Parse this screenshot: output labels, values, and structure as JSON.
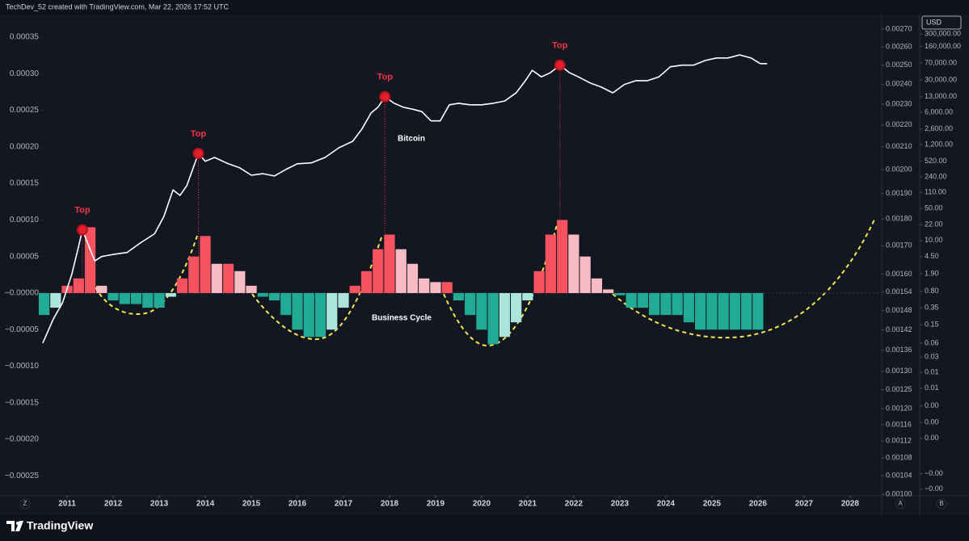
{
  "header": "TechDev_52 created with TradingView.com, Mar 22, 2026 17:52 UTC",
  "currency": "USD",
  "brand": "TradingView",
  "buttons": [
    "Z",
    "A",
    "B"
  ],
  "chart_data": {
    "type": "bar",
    "xlim": [
      2009.63,
      2028.67
    ],
    "xticks": [
      2011,
      2012,
      2013,
      2014,
      2015,
      2016,
      2017,
      2018,
      2019,
      2020,
      2021,
      2022,
      2023,
      2024,
      2025,
      2026,
      2027,
      2028
    ],
    "ylim": [
      -0.000275,
      0.000382
    ],
    "yticks": [
      {
        "value": 0.00035,
        "label": "0.00035"
      },
      {
        "value": 0.0003,
        "label": "0.00030"
      },
      {
        "value": 0.00025,
        "label": "0.00025"
      },
      {
        "value": 0.0002,
        "label": "0.00020"
      },
      {
        "value": 0.00015,
        "label": "0.00015"
      },
      {
        "value": 0.0001,
        "label": "0.00010"
      },
      {
        "value": 5e-05,
        "label": "0.00005"
      },
      {
        "value": 0,
        "label": "−0.00000"
      },
      {
        "value": -5e-05,
        "label": "−0.00005"
      },
      {
        "value": -0.0001,
        "label": "−0.00010"
      },
      {
        "value": -0.00015,
        "label": "−0.00015"
      },
      {
        "value": -0.0002,
        "label": "−0.00020"
      },
      {
        "value": -0.00025,
        "label": "−0.00025"
      }
    ],
    "y2lim": [
      3.2e-05,
      818000
    ],
    "y2scale": "log",
    "y2ticks": [
      {
        "value": 300000,
        "label": "300,000.00"
      },
      {
        "value": 160000,
        "label": "160,000.00"
      },
      {
        "value": 70000,
        "label": "70,000.00"
      },
      {
        "value": 30000,
        "label": "30,000.00"
      },
      {
        "value": 13000,
        "label": "13,000.00"
      },
      {
        "value": 6000,
        "label": "6,000.00"
      },
      {
        "value": 2600,
        "label": "2,600.00"
      },
      {
        "value": 1200,
        "label": "1,200.00"
      },
      {
        "value": 520,
        "label": "520.00"
      },
      {
        "value": 240,
        "label": "240.00"
      },
      {
        "value": 110,
        "label": "110.00"
      },
      {
        "value": 50,
        "label": "50.00"
      },
      {
        "value": 22,
        "label": "22.00"
      },
      {
        "value": 10,
        "label": "10.00"
      },
      {
        "value": 4.5,
        "label": "4.50"
      },
      {
        "value": 1.9,
        "label": "1.90"
      },
      {
        "value": 0.8,
        "label": "0.80"
      },
      {
        "value": 0.35,
        "label": "0.35"
      },
      {
        "value": 0.15,
        "label": "0.15"
      },
      {
        "value": 0.06,
        "label": "0.06"
      },
      {
        "value": 0.03,
        "label": "0.03"
      },
      {
        "value": 0.014,
        "label": "0.01"
      },
      {
        "value": 0.0063,
        "label": "0.01"
      },
      {
        "value": 0.0026,
        "label": "0.00"
      },
      {
        "value": 0.00114,
        "label": "0.00"
      },
      {
        "value": 0.00052,
        "label": "0.00"
      },
      {
        "value": 8.9e-05,
        "label": "−0.00"
      },
      {
        "value": 4.1e-05,
        "label": "−0.00"
      }
    ],
    "y3lim": [
      0.001,
      0.00279
    ],
    "y3scale": "log",
    "y3ticks": [
      {
        "value": 0.0027,
        "label": "0.00270"
      },
      {
        "value": 0.0026,
        "label": "0.00260"
      },
      {
        "value": 0.0025,
        "label": "0.00250"
      },
      {
        "value": 0.0024,
        "label": "0.00240"
      },
      {
        "value": 0.0023,
        "label": "0.00230"
      },
      {
        "value": 0.0022,
        "label": "0.00220"
      },
      {
        "value": 0.0021,
        "label": "0.00210"
      },
      {
        "value": 0.002,
        "label": "0.00200"
      },
      {
        "value": 0.0019,
        "label": "0.00190"
      },
      {
        "value": 0.0018,
        "label": "0.00180"
      },
      {
        "value": 0.0017,
        "label": "0.00170"
      },
      {
        "value": 0.0016,
        "label": "0.00160"
      },
      {
        "value": 0.00154,
        "label": "0.00154"
      },
      {
        "value": 0.00148,
        "label": "0.00148"
      },
      {
        "value": 0.00142,
        "label": "0.00142"
      },
      {
        "value": 0.00136,
        "label": "0.00136"
      },
      {
        "value": 0.0013,
        "label": "0.00130"
      },
      {
        "value": 0.00125,
        "label": "0.00125"
      },
      {
        "value": 0.0012,
        "label": "0.00120"
      },
      {
        "value": 0.00116,
        "label": "0.00116"
      },
      {
        "value": 0.00112,
        "label": "0.00112"
      },
      {
        "value": 0.00108,
        "label": "0.00108"
      },
      {
        "value": 0.00104,
        "label": "0.00104"
      },
      {
        "value": 0.001,
        "label": "0.00100"
      }
    ],
    "colors": {
      "growing_above": "#f7525f",
      "falling_above": "#f8bbc3",
      "falling_below": "#22ab94",
      "growing_below": "#ace5dc"
    },
    "series": [
      {
        "name": "Business Cycle",
        "type": "bar",
        "x": [
          2010.5,
          2010.75,
          2011,
          2011.25,
          2011.5,
          2011.75,
          2012,
          2012.25,
          2012.5,
          2012.75,
          2013,
          2013.25,
          2013.5,
          2013.75,
          2014,
          2014.25,
          2014.5,
          2014.75,
          2015,
          2015.25,
          2015.5,
          2015.75,
          2016,
          2016.25,
          2016.5,
          2016.75,
          2017,
          2017.25,
          2017.5,
          2017.75,
          2018,
          2018.25,
          2018.5,
          2018.75,
          2019,
          2019.25,
          2019.5,
          2019.75,
          2020,
          2020.25,
          2020.5,
          2020.75,
          2021,
          2021.25,
          2021.5,
          2021.75,
          2022,
          2022.25,
          2022.5,
          2022.75,
          2023,
          2023.25,
          2023.5,
          2023.75,
          2024,
          2024.25,
          2024.5,
          2024.75,
          2025,
          2025.25,
          2025.5,
          2025.75,
          2026
        ],
        "values": [
          -3e-05,
          -2e-05,
          1e-05,
          2e-05,
          9e-05,
          1e-05,
          -1e-05,
          -1.5e-05,
          -1.5e-05,
          -2e-05,
          -2e-05,
          -5e-06,
          2e-05,
          5e-05,
          7.8e-05,
          4e-05,
          4e-05,
          3e-05,
          1e-05,
          -5e-06,
          -1e-05,
          -3e-05,
          -5e-05,
          -6e-05,
          -6e-05,
          -5e-05,
          -2e-05,
          1e-05,
          3e-05,
          6e-05,
          8e-05,
          6e-05,
          4e-05,
          2e-05,
          1.5e-05,
          1.5e-05,
          -1e-05,
          -3e-05,
          -5e-05,
          -7e-05,
          -6e-05,
          -4e-05,
          -1e-05,
          3e-05,
          8e-05,
          0.0001,
          8e-05,
          5e-05,
          2e-05,
          5e-06,
          -3e-06,
          -2e-05,
          -2e-05,
          -3e-05,
          -3e-05,
          -3e-05,
          -4e-05,
          -5e-05,
          -5e-05,
          -5e-05,
          -5e-05,
          -5e-05,
          -5e-05
        ]
      },
      {
        "name": "Bitcoin",
        "type": "line",
        "axis": "y2",
        "color": "#ffffff",
        "x": [
          2010.47,
          2010.7,
          2010.9,
          2011.1,
          2011.25,
          2011.33,
          2011.6,
          2011.75,
          2012,
          2012.3,
          2012.6,
          2012.9,
          2013.1,
          2013.3,
          2013.45,
          2013.6,
          2013.85,
          2014,
          2014.2,
          2014.5,
          2014.75,
          2015,
          2015.25,
          2015.5,
          2015.75,
          2016,
          2016.3,
          2016.6,
          2016.9,
          2017.2,
          2017.4,
          2017.6,
          2017.75,
          2017.9,
          2018.1,
          2018.3,
          2018.5,
          2018.7,
          2018.9,
          2019.1,
          2019.3,
          2019.5,
          2019.75,
          2020,
          2020.25,
          2020.5,
          2020.75,
          2020.95,
          2021.1,
          2021.3,
          2021.5,
          2021.7,
          2021.9,
          2022.1,
          2022.35,
          2022.6,
          2022.85,
          2023.1,
          2023.35,
          2023.6,
          2023.85,
          2024.1,
          2024.35,
          2024.6,
          2024.85,
          2025.1,
          2025.35,
          2025.6,
          2025.85,
          2026.05,
          2026.2
        ],
        "values": [
          0.06,
          0.2,
          0.45,
          1.85,
          7.5,
          17,
          3.6,
          4.5,
          5,
          5.5,
          9,
          14,
          33,
          125,
          95,
          155,
          770,
          520,
          630,
          460,
          375,
          260,
          280,
          250,
          345,
          460,
          480,
          630,
          1020,
          1410,
          2600,
          5800,
          7700,
          13000,
          9400,
          7700,
          7000,
          6200,
          3900,
          3900,
          8700,
          9400,
          8700,
          8700,
          9400,
          10500,
          15800,
          29000,
          48500,
          35000,
          43500,
          63000,
          43500,
          35000,
          26000,
          21000,
          15800,
          24000,
          29000,
          29000,
          35000,
          58000,
          63000,
          63000,
          79000,
          90000,
          90000,
          105000,
          90000,
          68000,
          68000
        ]
      }
    ],
    "annotations": [
      {
        "label": "Top",
        "x": 2011.33
      },
      {
        "label": "Top",
        "x": 2013.85
      },
      {
        "label": "Top",
        "x": 2017.9
      },
      {
        "label": "Top",
        "x": 2021.7
      }
    ]
  }
}
